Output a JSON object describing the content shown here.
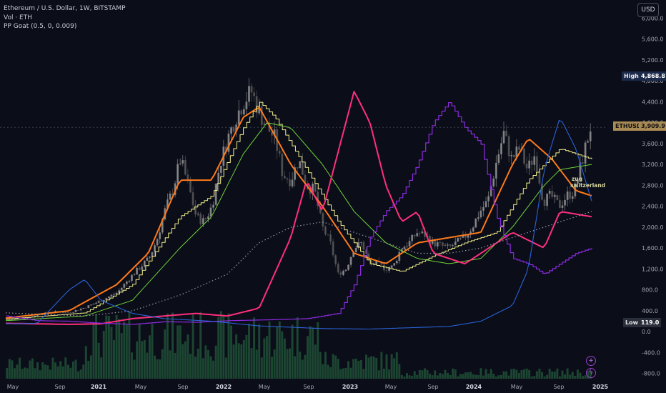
{
  "legend": {
    "symbol": "Ethereum / U.S. Dollar, 1W, BITSTAMP",
    "volume": "Vol · ETH",
    "indicator": "PP Goat (0.5, 0, 0.009)"
  },
  "currency_button": "USD",
  "price_tags": {
    "high_label": "High",
    "high_value": "4,868.8",
    "last_label": "ETHUSD",
    "last_value": "3,909.9",
    "low_label": "Low",
    "low_value": "119.0"
  },
  "annotation": {
    "line1": "zug",
    "line2": "switzerland"
  },
  "colors": {
    "background": "#0b0d18",
    "candle_up": "#9a9a9a",
    "candle_down": "#5e5e5e",
    "volume": "#1e4d35",
    "orange": "#ff7a1a",
    "yellow": "#f2f08a",
    "green": "#6fd43a",
    "pink": "#ff2f7d",
    "purple": "#8b2be0",
    "blue": "#2a62d6",
    "dotted": "#9a9aa4",
    "high_tag": "#1b2a4a",
    "last_tag": "#a88a55",
    "low_tag": "#2a2e3a"
  },
  "chart_data": {
    "type": "line",
    "title": "Ethereum / U.S. Dollar, 1W, BITSTAMP",
    "y_axis_ticks": [
      "6,000.0",
      "5,600.0",
      "5,200.0",
      "4,800.0",
      "4,400.0",
      "4,000.0",
      "3,600.0",
      "3,200.0",
      "2,800.0",
      "2,400.0",
      "2,000.0",
      "1,600.0",
      "1,200.0",
      "800.0",
      "400.0",
      "0.0",
      "-400.0",
      "-800.0"
    ],
    "x_axis_ticks": [
      "May",
      "Sep",
      "2021",
      "May",
      "Sep",
      "2022",
      "May",
      "Sep",
      "2023",
      "May",
      "Sep",
      "2024",
      "May",
      "Sep",
      "2025"
    ],
    "ylim": [
      -900,
      6100
    ],
    "grid": false,
    "price_close_approx": [
      [
        0,
        230
      ],
      [
        2,
        240
      ],
      [
        4,
        330
      ],
      [
        6,
        380
      ],
      [
        8,
        370
      ],
      [
        10,
        470
      ],
      [
        12,
        600
      ],
      [
        14,
        750
      ],
      [
        16,
        1100
      ],
      [
        18,
        1400
      ],
      [
        19,
        1750
      ],
      [
        20,
        2300
      ],
      [
        21,
        2700
      ],
      [
        22,
        3300
      ],
      [
        23,
        2800
      ],
      [
        24,
        2200
      ],
      [
        25,
        2100
      ],
      [
        26,
        2400
      ],
      [
        27,
        3200
      ],
      [
        28,
        3700
      ],
      [
        29,
        4100
      ],
      [
        30,
        4400
      ],
      [
        31,
        4600
      ],
      [
        32,
        4200
      ],
      [
        33,
        3900
      ],
      [
        34,
        3700
      ],
      [
        35,
        3000
      ],
      [
        36,
        2900
      ],
      [
        37,
        3300
      ],
      [
        38,
        2800
      ],
      [
        39,
        2700
      ],
      [
        40,
        2000
      ],
      [
        41,
        1700
      ],
      [
        42,
        1100
      ],
      [
        43,
        1200
      ],
      [
        44,
        1600
      ],
      [
        45,
        1700
      ],
      [
        46,
        1300
      ],
      [
        47,
        1300
      ],
      [
        48,
        1200
      ],
      [
        49,
        1250
      ],
      [
        50,
        1600
      ],
      [
        51,
        1700
      ],
      [
        52,
        1900
      ],
      [
        53,
        1850
      ],
      [
        54,
        1700
      ],
      [
        55,
        1650
      ],
      [
        56,
        1600
      ],
      [
        57,
        1700
      ],
      [
        58,
        1800
      ],
      [
        59,
        2000
      ],
      [
        60,
        2300
      ],
      [
        61,
        2500
      ],
      [
        62,
        3200
      ],
      [
        63,
        3800
      ],
      [
        64,
        3300
      ],
      [
        65,
        3500
      ],
      [
        66,
        3100
      ],
      [
        67,
        3400
      ],
      [
        68,
        2500
      ],
      [
        69,
        2600
      ],
      [
        70,
        2400
      ],
      [
        71,
        2600
      ],
      [
        72,
        2700
      ],
      [
        73,
        3300
      ],
      [
        74,
        3909.9
      ]
    ],
    "series": [
      {
        "values": [
          [
            0,
            260
          ],
          [
            8,
            400
          ],
          [
            14,
            900
          ],
          [
            18,
            1500
          ],
          [
            22,
            2900
          ],
          [
            26,
            2900
          ],
          [
            30,
            4100
          ],
          [
            32,
            4300
          ],
          [
            36,
            3200
          ],
          [
            40,
            2400
          ],
          [
            44,
            1500
          ],
          [
            48,
            1300
          ],
          [
            52,
            1700
          ],
          [
            56,
            1800
          ],
          [
            60,
            1900
          ],
          [
            64,
            3200
          ],
          [
            66,
            3700
          ],
          [
            69,
            3300
          ],
          [
            72,
            2700
          ],
          [
            74,
            2600
          ]
        ]
      },
      {
        "values": [
          [
            0,
            240
          ],
          [
            10,
            360
          ],
          [
            16,
            900
          ],
          [
            22,
            2200
          ],
          [
            26,
            2600
          ],
          [
            30,
            3900
          ],
          [
            32,
            4400
          ],
          [
            34,
            4100
          ],
          [
            38,
            3100
          ],
          [
            42,
            2100
          ],
          [
            46,
            1300
          ],
          [
            50,
            1150
          ],
          [
            54,
            1450
          ],
          [
            58,
            1700
          ],
          [
            62,
            1900
          ],
          [
            66,
            2900
          ],
          [
            70,
            3500
          ],
          [
            72,
            3400
          ],
          [
            74,
            3300
          ]
        ]
      },
      {
        "values": [
          [
            0,
            210
          ],
          [
            10,
            300
          ],
          [
            16,
            600
          ],
          [
            22,
            1600
          ],
          [
            26,
            2200
          ],
          [
            30,
            3400
          ],
          [
            33,
            4000
          ],
          [
            36,
            3900
          ],
          [
            40,
            3200
          ],
          [
            44,
            2300
          ],
          [
            48,
            1700
          ],
          [
            52,
            1400
          ],
          [
            56,
            1300
          ],
          [
            60,
            1400
          ],
          [
            64,
            2000
          ],
          [
            68,
            2800
          ],
          [
            70,
            3100
          ],
          [
            74,
            3200
          ]
        ]
      },
      {
        "values": [
          [
            0,
            160
          ],
          [
            8,
            140
          ],
          [
            12,
            150
          ],
          [
            16,
            250
          ],
          [
            20,
            300
          ],
          [
            24,
            350
          ],
          [
            28,
            300
          ],
          [
            32,
            450
          ],
          [
            36,
            1800
          ],
          [
            38,
            2900
          ],
          [
            40,
            2300
          ],
          [
            44,
            4600
          ],
          [
            46,
            4000
          ],
          [
            48,
            2800
          ],
          [
            50,
            2100
          ],
          [
            52,
            2300
          ],
          [
            54,
            1500
          ],
          [
            58,
            1300
          ],
          [
            62,
            1700
          ],
          [
            64,
            1900
          ],
          [
            68,
            1600
          ],
          [
            70,
            2300
          ],
          [
            74,
            2200
          ]
        ]
      },
      {
        "values": [
          [
            0,
            300
          ],
          [
            4,
            210
          ],
          [
            8,
            200
          ],
          [
            12,
            160
          ],
          [
            16,
            140
          ],
          [
            20,
            190
          ],
          [
            24,
            180
          ],
          [
            28,
            210
          ],
          [
            34,
            230
          ],
          [
            38,
            250
          ],
          [
            42,
            350
          ],
          [
            44,
            900
          ],
          [
            46,
            1800
          ],
          [
            48,
            2300
          ],
          [
            50,
            2600
          ],
          [
            52,
            3200
          ],
          [
            54,
            4000
          ],
          [
            56,
            4400
          ],
          [
            58,
            3900
          ],
          [
            60,
            3600
          ],
          [
            62,
            2200
          ],
          [
            64,
            1400
          ],
          [
            66,
            1300
          ],
          [
            68,
            1100
          ],
          [
            70,
            1300
          ],
          [
            72,
            1500
          ],
          [
            74,
            1600
          ]
        ]
      },
      {
        "values": [
          [
            0,
            150
          ],
          [
            4,
            160
          ],
          [
            8,
            800
          ],
          [
            10,
            1000
          ],
          [
            12,
            600
          ],
          [
            16,
            350
          ],
          [
            20,
            250
          ],
          [
            26,
            200
          ],
          [
            32,
            110
          ],
          [
            40,
            60
          ],
          [
            46,
            50
          ],
          [
            50,
            70
          ],
          [
            56,
            100
          ],
          [
            60,
            200
          ],
          [
            64,
            500
          ],
          [
            66,
            1200
          ],
          [
            68,
            3100
          ],
          [
            70,
            4100
          ],
          [
            72,
            3500
          ],
          [
            74,
            2500
          ]
        ]
      },
      {
        "values": [
          [
            0,
            360
          ],
          [
            10,
            300
          ],
          [
            16,
            400
          ],
          [
            22,
            700
          ],
          [
            28,
            1100
          ],
          [
            32,
            1700
          ],
          [
            36,
            2000
          ],
          [
            40,
            2100
          ],
          [
            44,
            1900
          ],
          [
            48,
            1700
          ],
          [
            52,
            1500
          ],
          [
            56,
            1500
          ],
          [
            60,
            1600
          ],
          [
            64,
            1800
          ],
          [
            68,
            2000
          ],
          [
            72,
            2200
          ],
          [
            74,
            2300
          ]
        ]
      }
    ]
  }
}
